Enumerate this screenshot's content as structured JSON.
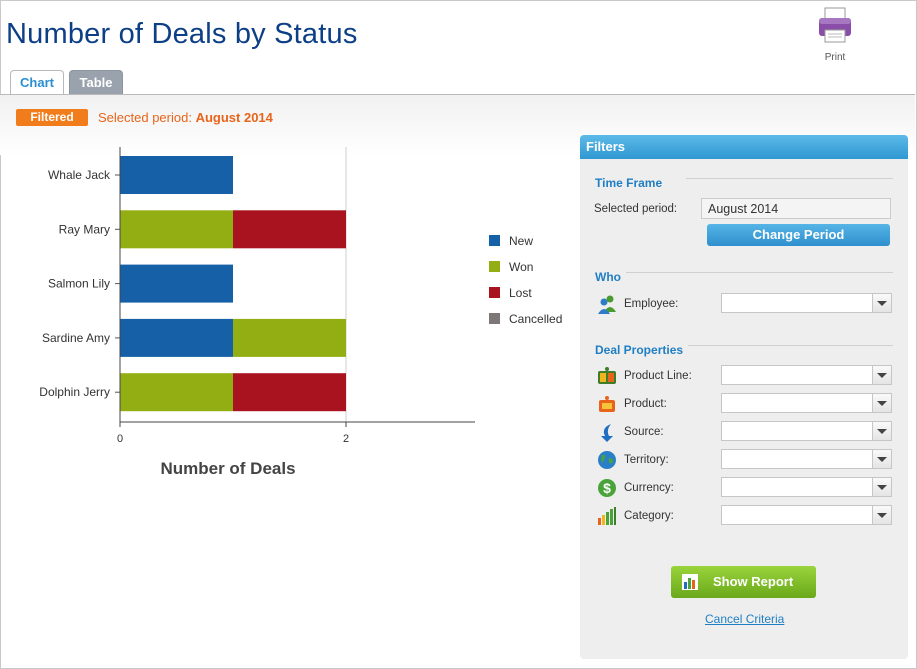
{
  "page": {
    "title": "Number of Deals by Status",
    "print_label": "Print"
  },
  "tabs": [
    {
      "label": "Chart",
      "active": true
    },
    {
      "label": "Table",
      "active": false
    }
  ],
  "filter_bar": {
    "badge": "Filtered",
    "period_label": "Selected period:",
    "period_value": "August 2014"
  },
  "chart_data": {
    "type": "bar",
    "orientation": "horizontal",
    "stacked": true,
    "categories": [
      "Whale Jack",
      "Ray Mary",
      "Salmon Lily",
      "Sardine Amy",
      "Dolphin Jerry"
    ],
    "series": [
      {
        "name": "New",
        "color": "#1660a8",
        "values": [
          1,
          0,
          1,
          1,
          0
        ]
      },
      {
        "name": "Won",
        "color": "#93ae12",
        "values": [
          0,
          1,
          0,
          1,
          1
        ]
      },
      {
        "name": "Lost",
        "color": "#a8131f",
        "values": [
          0,
          1,
          0,
          0,
          1
        ]
      },
      {
        "name": "Cancelled",
        "color": "#7d7778",
        "values": [
          0,
          0,
          0,
          0,
          0
        ]
      }
    ],
    "xlabel": "Number of Deals",
    "xticks": [
      "0",
      "2"
    ],
    "xlim": [
      0,
      3.1
    ],
    "legend_position": "right",
    "grid": "vertical at 2"
  },
  "filters": {
    "header": "Filters",
    "time_frame": {
      "title": "Time Frame",
      "label": "Selected period:",
      "value": "August 2014",
      "button": "Change Period"
    },
    "who": {
      "title": "Who",
      "fields": [
        {
          "label": "Employee:",
          "icon": "employee-icon"
        }
      ]
    },
    "deal_properties": {
      "title": "Deal Properties",
      "fields": [
        {
          "label": "Product Line:",
          "icon": "product-line-icon"
        },
        {
          "label": "Product:",
          "icon": "product-icon"
        },
        {
          "label": "Source:",
          "icon": "source-arrow-icon"
        },
        {
          "label": "Territory:",
          "icon": "globe-icon"
        },
        {
          "label": "Currency:",
          "icon": "dollar-icon"
        },
        {
          "label": "Category:",
          "icon": "category-bars-icon"
        }
      ]
    },
    "show_report": "Show Report",
    "cancel": "Cancel Criteria"
  }
}
